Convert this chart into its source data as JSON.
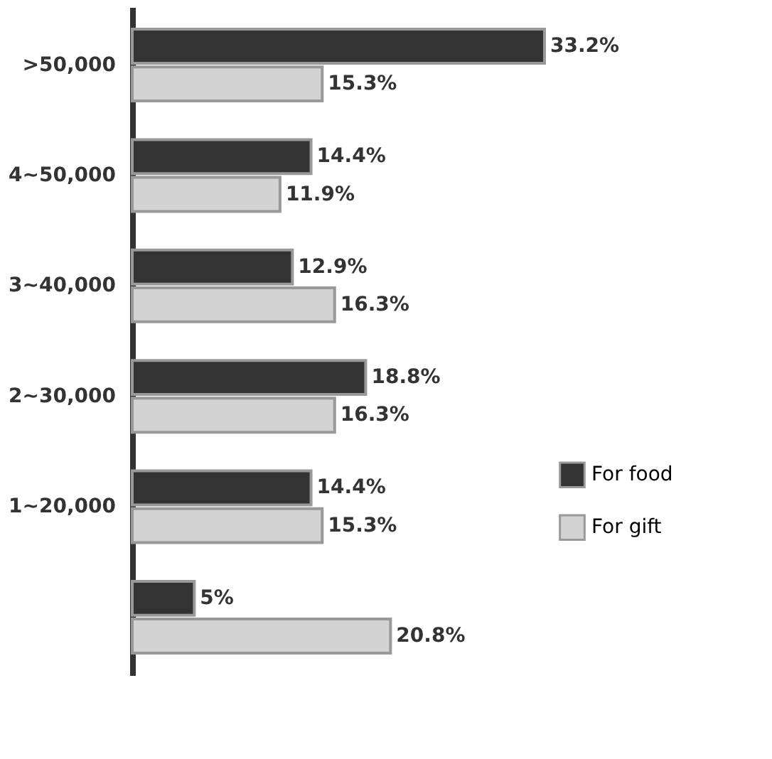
{
  "chart_data": {
    "type": "bar",
    "orientation": "horizontal",
    "categories": [
      ">50,000",
      "4~50,000",
      "3~40,000",
      "2~30,000",
      "1~20,000",
      null
    ],
    "series": [
      {
        "name": "For food",
        "color": "#333333",
        "values": [
          33.2,
          14.4,
          12.9,
          18.8,
          14.4,
          5
        ],
        "value_labels": [
          "33.2%",
          "14.4%",
          "12.9%",
          "18.8%",
          "14.4%",
          "5%"
        ]
      },
      {
        "name": "For gift",
        "color": "#d3d3d3",
        "values": [
          15.3,
          11.9,
          16.3,
          16.3,
          15.3,
          20.8
        ],
        "value_labels": [
          "15.3%",
          "11.9%",
          "16.3%",
          "16.3%",
          "15.3%",
          "20.8%"
        ]
      }
    ],
    "legend": "right",
    "grid": false
  }
}
